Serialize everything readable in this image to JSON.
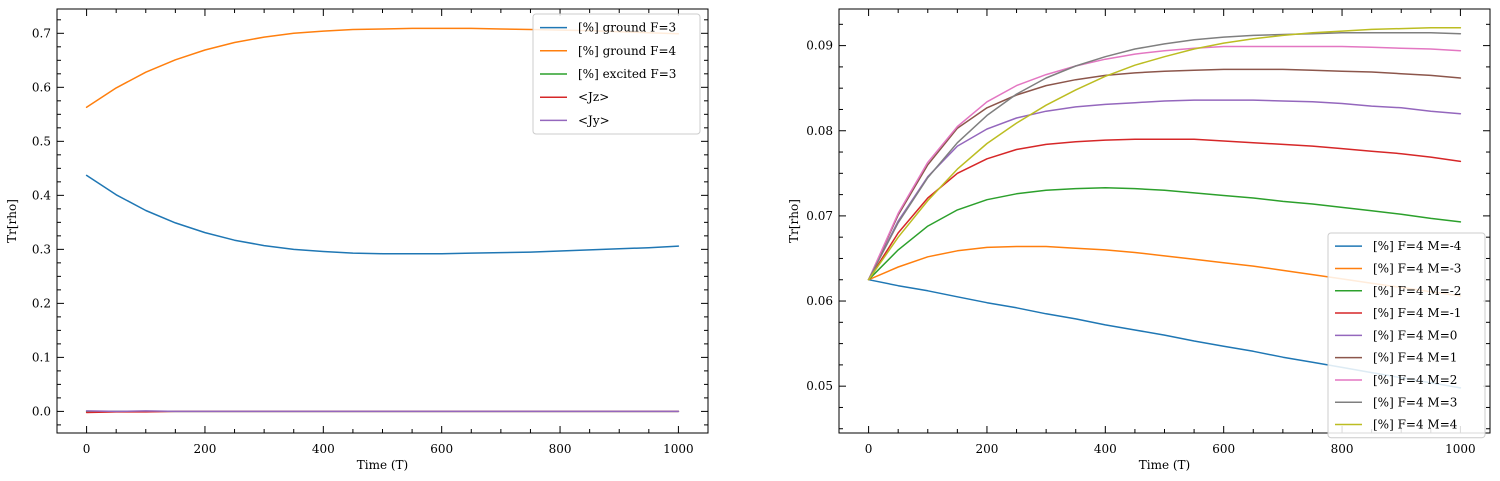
{
  "chart_data": [
    {
      "type": "line",
      "title": "",
      "xlabel": "Time (T)",
      "ylabel": "Tr[rho]",
      "xlim": [
        -50,
        1050
      ],
      "ylim": [
        -0.04,
        0.745
      ],
      "xticks": [
        0,
        200,
        400,
        600,
        800,
        1000
      ],
      "yticks": [
        0.0,
        0.1,
        0.2,
        0.3,
        0.4,
        0.5,
        0.6,
        0.7
      ],
      "xtick_labels": [
        "0",
        "200",
        "400",
        "600",
        "800",
        "1000"
      ],
      "ytick_labels": [
        "0.0",
        "0.1",
        "0.2",
        "0.3",
        "0.4",
        "0.5",
        "0.6",
        "0.7"
      ],
      "grid": false,
      "legend_position": "top-right",
      "x": [
        0,
        50,
        100,
        150,
        200,
        250,
        300,
        350,
        400,
        450,
        500,
        550,
        600,
        650,
        700,
        750,
        800,
        850,
        900,
        950,
        1000
      ],
      "series": [
        {
          "name": "[%] ground  F=3",
          "color": "#1f77b4",
          "values": [
            0.437,
            0.401,
            0.372,
            0.349,
            0.331,
            0.317,
            0.307,
            0.3,
            0.296,
            0.293,
            0.292,
            0.292,
            0.292,
            0.293,
            0.294,
            0.295,
            0.297,
            0.299,
            0.301,
            0.303,
            0.306
          ]
        },
        {
          "name": "[%] ground  F=4",
          "color": "#ff7f0e",
          "values": [
            0.563,
            0.599,
            0.628,
            0.651,
            0.669,
            0.683,
            0.693,
            0.7,
            0.704,
            0.707,
            0.708,
            0.709,
            0.709,
            0.709,
            0.708,
            0.707,
            0.706,
            0.705,
            0.703,
            0.701,
            0.699
          ]
        },
        {
          "name": "[%] excited F=3",
          "color": "#2ca02c",
          "values": [
            0.0,
            0.0,
            0.0,
            0.0,
            0.0,
            0.0,
            0.0,
            0.0,
            0.0,
            0.0,
            0.0,
            0.0,
            0.0,
            0.0,
            0.0,
            0.0,
            0.0,
            0.0,
            0.0,
            0.0,
            0.0
          ]
        },
        {
          "name": "<Jz>",
          "color": "#d62728",
          "values": [
            -0.002,
            -0.001,
            -0.001,
            0.0,
            0.0,
            0.0,
            0.0,
            0.0,
            0.0,
            0.0,
            0.0,
            0.0,
            0.0,
            0.0,
            0.0,
            0.0,
            0.0,
            0.0,
            0.0,
            0.0,
            0.0
          ]
        },
        {
          "name": "<Jy>",
          "color": "#9467bd",
          "values": [
            0.001,
            0.0,
            0.001,
            0.0,
            0.0,
            0.0,
            0.0,
            0.0,
            0.0,
            0.0,
            0.0,
            0.0,
            0.0,
            0.0,
            0.0,
            0.0,
            0.0,
            0.0,
            0.0,
            0.0,
            0.0
          ]
        }
      ]
    },
    {
      "type": "line",
      "title": "",
      "xlabel": "Time (T)",
      "ylabel": "Tr[rho]",
      "xlim": [
        -50,
        1050
      ],
      "ylim": [
        0.0445,
        0.0943
      ],
      "xticks": [
        0,
        200,
        400,
        600,
        800,
        1000
      ],
      "yticks": [
        0.05,
        0.06,
        0.07,
        0.08,
        0.09
      ],
      "xtick_labels": [
        "0",
        "200",
        "400",
        "600",
        "800",
        "1000"
      ],
      "ytick_labels": [
        "0.05",
        "0.06",
        "0.07",
        "0.08",
        "0.09"
      ],
      "grid": false,
      "legend_position": "bottom-right",
      "x": [
        0,
        50,
        100,
        150,
        200,
        250,
        300,
        350,
        400,
        450,
        500,
        550,
        600,
        650,
        700,
        750,
        800,
        850,
        900,
        950,
        1000
      ],
      "series": [
        {
          "name": "[%] F=4  M=-4",
          "color": "#1f77b4",
          "values": [
            0.0625,
            0.0618,
            0.0612,
            0.0605,
            0.0598,
            0.0592,
            0.0585,
            0.0579,
            0.0572,
            0.0566,
            0.056,
            0.0553,
            0.0547,
            0.0541,
            0.0534,
            0.0528,
            0.0522,
            0.0516,
            0.051,
            0.0504,
            0.0498
          ]
        },
        {
          "name": "[%] F=4  M=-3",
          "color": "#ff7f0e",
          "values": [
            0.0625,
            0.064,
            0.0652,
            0.0659,
            0.0663,
            0.0664,
            0.0664,
            0.0662,
            0.066,
            0.0657,
            0.0653,
            0.0649,
            0.0645,
            0.0641,
            0.0636,
            0.0631,
            0.0626,
            0.0621,
            0.0616,
            0.0611,
            0.0606
          ]
        },
        {
          "name": "[%] F=4  M=-2",
          "color": "#2ca02c",
          "values": [
            0.0625,
            0.066,
            0.0688,
            0.0707,
            0.0719,
            0.0726,
            0.073,
            0.0732,
            0.0733,
            0.0732,
            0.073,
            0.0727,
            0.0724,
            0.0721,
            0.0717,
            0.0714,
            0.071,
            0.0706,
            0.0702,
            0.0697,
            0.0693
          ]
        },
        {
          "name": "[%] F=4  M=-1",
          "color": "#d62728",
          "values": [
            0.0625,
            0.068,
            0.0721,
            0.075,
            0.0767,
            0.0778,
            0.0784,
            0.0787,
            0.0789,
            0.079,
            0.079,
            0.079,
            0.0788,
            0.0786,
            0.0784,
            0.0782,
            0.0779,
            0.0776,
            0.0773,
            0.0769,
            0.0764
          ]
        },
        {
          "name": "[%] F=4  M=0",
          "color": "#9467bd",
          "values": [
            0.0625,
            0.0694,
            0.0746,
            0.0782,
            0.0802,
            0.0815,
            0.0823,
            0.0828,
            0.0831,
            0.0833,
            0.0835,
            0.0836,
            0.0836,
            0.0836,
            0.0835,
            0.0834,
            0.0832,
            0.0829,
            0.0827,
            0.0823,
            0.082
          ]
        },
        {
          "name": "[%] F=4  M=1",
          "color": "#8c564b",
          "values": [
            0.0625,
            0.0701,
            0.076,
            0.0803,
            0.0827,
            0.0842,
            0.0853,
            0.086,
            0.0865,
            0.0868,
            0.087,
            0.0871,
            0.0872,
            0.0872,
            0.0872,
            0.0871,
            0.087,
            0.0869,
            0.0867,
            0.0865,
            0.0862
          ]
        },
        {
          "name": "[%] F=4  M=2",
          "color": "#e377c2",
          "values": [
            0.0625,
            0.0703,
            0.0763,
            0.0805,
            0.0834,
            0.0853,
            0.0866,
            0.0876,
            0.0884,
            0.089,
            0.0894,
            0.0897,
            0.0899,
            0.0899,
            0.0899,
            0.0899,
            0.0899,
            0.0898,
            0.0897,
            0.0896,
            0.0894
          ]
        },
        {
          "name": "[%] F=4  M=3",
          "color": "#7f7f7f",
          "values": [
            0.0625,
            0.0692,
            0.0745,
            0.0786,
            0.0818,
            0.0843,
            0.0862,
            0.0876,
            0.0887,
            0.0896,
            0.0902,
            0.0907,
            0.091,
            0.0912,
            0.0913,
            0.0914,
            0.0915,
            0.0915,
            0.0915,
            0.0915,
            0.0914
          ]
        },
        {
          "name": "[%] F=4  M=4",
          "color": "#bcbd22",
          "values": [
            0.0625,
            0.0675,
            0.0718,
            0.0755,
            0.0785,
            0.0809,
            0.083,
            0.0848,
            0.0864,
            0.0877,
            0.0887,
            0.0896,
            0.0903,
            0.0908,
            0.0912,
            0.0915,
            0.0917,
            0.0919,
            0.092,
            0.0921,
            0.0921
          ]
        }
      ]
    }
  ]
}
